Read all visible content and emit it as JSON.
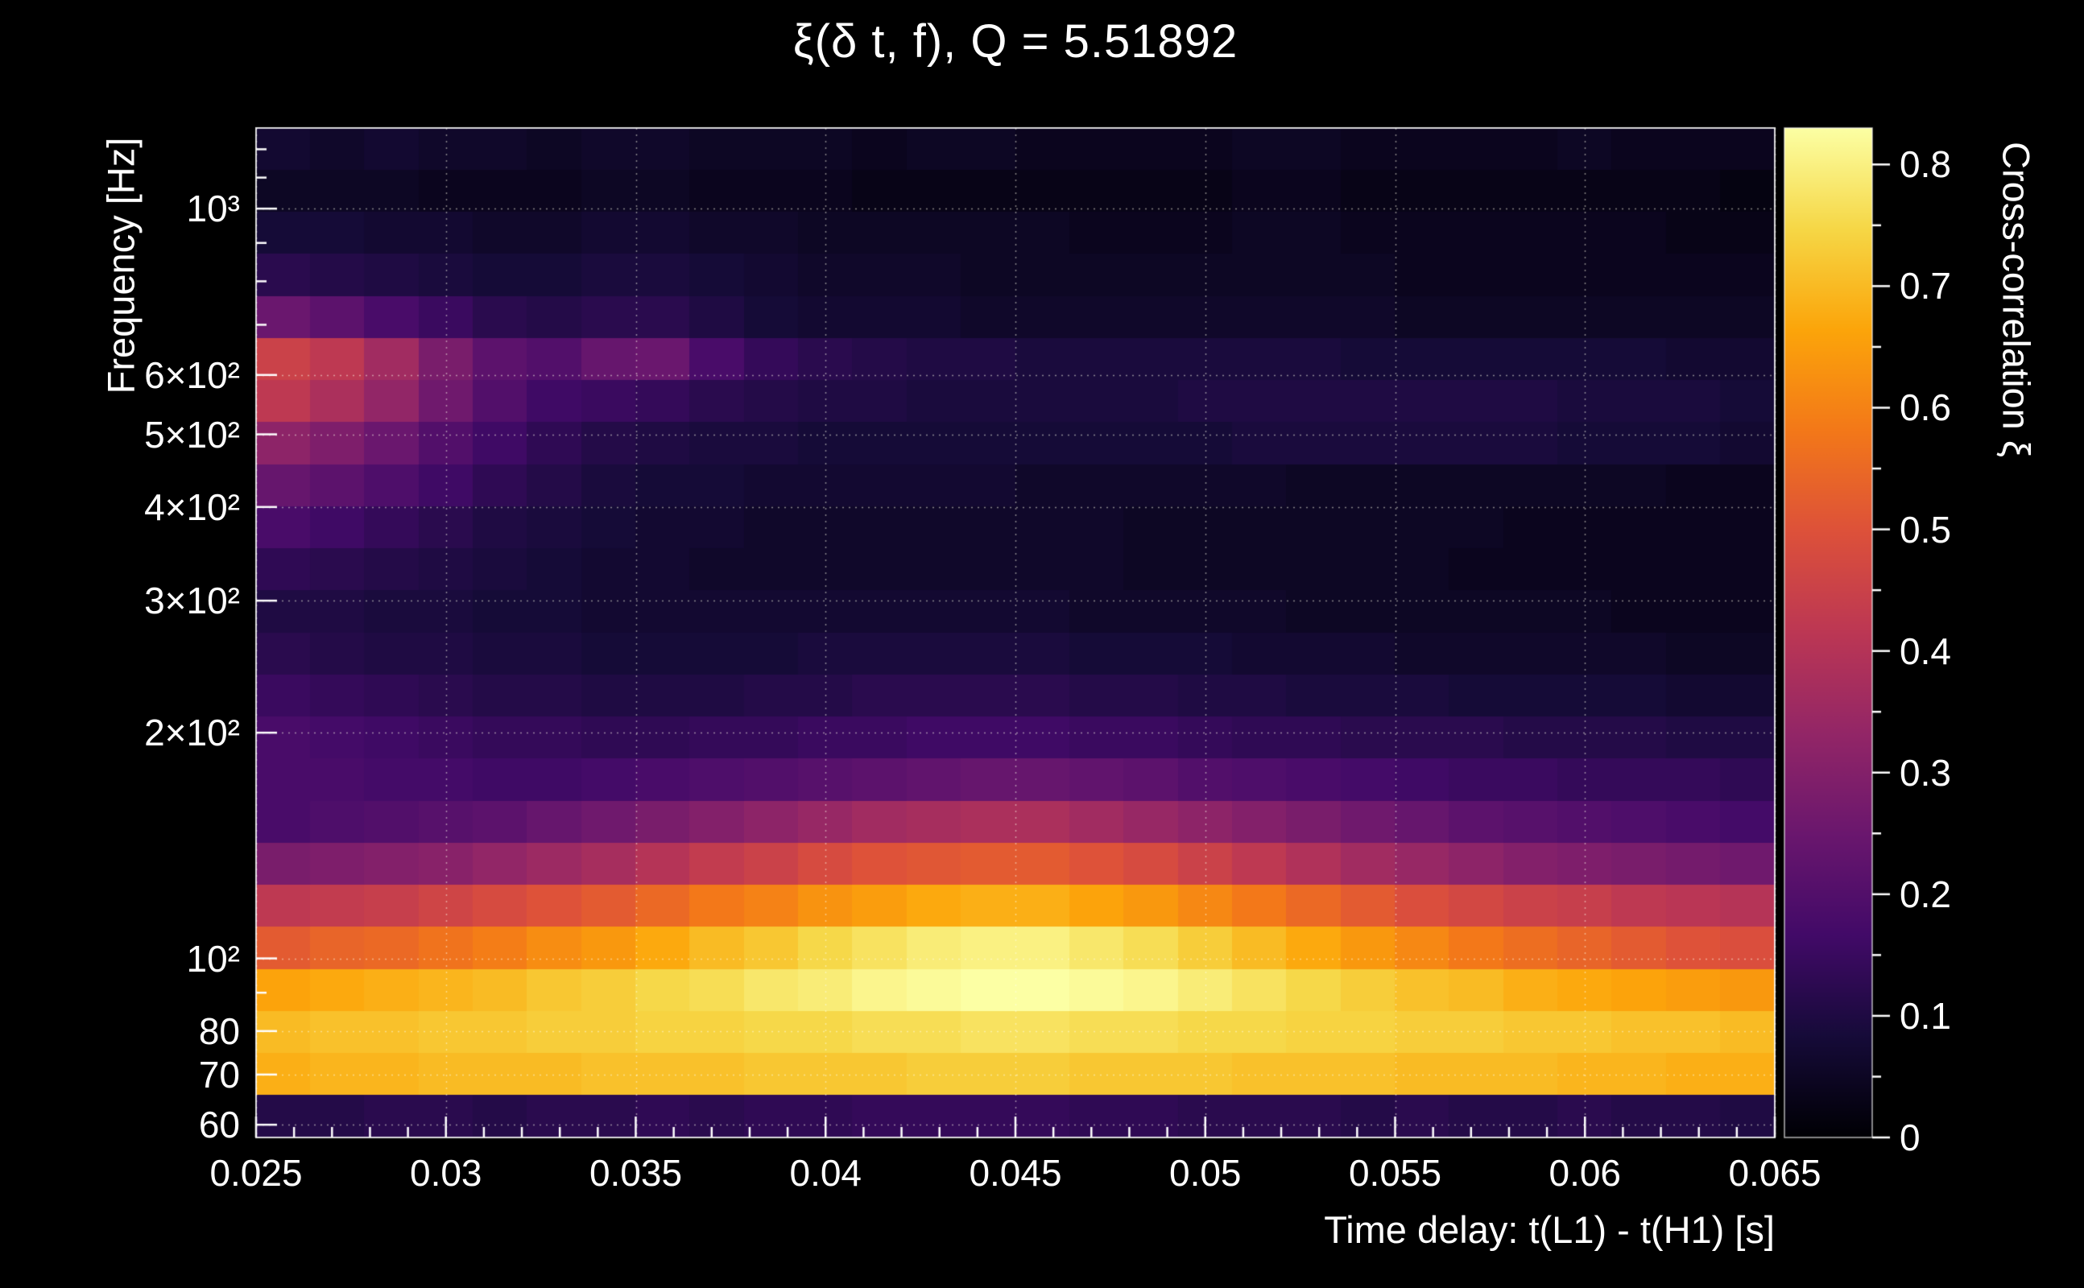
{
  "page": {
    "background_color": "#000000",
    "text_color": "#ffffff"
  },
  "chart_data": {
    "type": "heatmap",
    "title": "ξ(δ t, f), Q = 5.51892",
    "q_value": 5.51892,
    "xlabel": "Time delay: t(L1) - t(H1) [s]",
    "ylabel": "Frequency [Hz]",
    "zlabel": "Cross-correlation ξ",
    "x_min": 0.025,
    "x_max": 0.065,
    "y_min": 57.7,
    "y_max": 1281,
    "y_scale": "log",
    "z_min": 0,
    "z_max": 0.83,
    "x_ticks": [
      {
        "value": 0.025,
        "label": "0.025"
      },
      {
        "value": 0.03,
        "label": "0.03"
      },
      {
        "value": 0.035,
        "label": "0.035"
      },
      {
        "value": 0.04,
        "label": "0.04"
      },
      {
        "value": 0.045,
        "label": "0.045"
      },
      {
        "value": 0.05,
        "label": "0.05"
      },
      {
        "value": 0.055,
        "label": "0.055"
      },
      {
        "value": 0.06,
        "label": "0.06"
      },
      {
        "value": 0.065,
        "label": "0.065"
      }
    ],
    "y_ticks_major": [
      {
        "value": 1000,
        "label": "10³"
      },
      {
        "value": 600,
        "label": "6×10²"
      },
      {
        "value": 500,
        "label": "5×10²"
      },
      {
        "value": 400,
        "label": "4×10²"
      },
      {
        "value": 300,
        "label": "3×10²"
      },
      {
        "value": 200,
        "label": "2×10²"
      },
      {
        "value": 100,
        "label": "10²"
      },
      {
        "value": 80,
        "label": "80"
      },
      {
        "value": 70,
        "label": "70"
      },
      {
        "value": 60,
        "label": "60"
      }
    ],
    "y_ticks_minor": [
      90,
      700,
      800,
      900,
      1100,
      1200
    ],
    "z_ticks": [
      {
        "value": 0,
        "label": "0"
      },
      {
        "value": 0.1,
        "label": "0.1"
      },
      {
        "value": 0.2,
        "label": "0.2"
      },
      {
        "value": 0.3,
        "label": "0.3"
      },
      {
        "value": 0.4,
        "label": "0.4"
      },
      {
        "value": 0.5,
        "label": "0.5"
      },
      {
        "value": 0.6,
        "label": "0.6"
      },
      {
        "value": 0.7,
        "label": "0.7"
      },
      {
        "value": 0.8,
        "label": "0.8"
      }
    ],
    "grid": {
      "show": true,
      "color": "rgba(255,255,235,0.5)",
      "style": "dotted"
    },
    "colormap": {
      "name": "inferno",
      "stops": [
        [
          0.0,
          0,
          0,
          4
        ],
        [
          0.1,
          22,
          11,
          57
        ],
        [
          0.2,
          66,
          10,
          104
        ],
        [
          0.3,
          106,
          23,
          110
        ],
        [
          0.4,
          147,
          38,
          103
        ],
        [
          0.5,
          188,
          55,
          84
        ],
        [
          0.6,
          221,
          81,
          58
        ],
        [
          0.7,
          243,
          120,
          25
        ],
        [
          0.8,
          252,
          165,
          10
        ],
        [
          0.9,
          246,
          215,
          70
        ],
        [
          1.0,
          252,
          255,
          164
        ]
      ]
    },
    "n_time_bins": 28,
    "n_freq_bins": 24,
    "values_row_order": "top_to_bottom_high_freq_first",
    "values": [
      [
        0.07,
        0.06,
        0.07,
        0.06,
        0.06,
        0.05,
        0.06,
        0.06,
        0.05,
        0.05,
        0.05,
        0.04,
        0.05,
        0.05,
        0.04,
        0.04,
        0.04,
        0.04,
        0.05,
        0.05,
        0.04,
        0.04,
        0.04,
        0.04,
        0.05,
        0.04,
        0.04,
        0.04
      ],
      [
        0.05,
        0.05,
        0.05,
        0.04,
        0.04,
        0.04,
        0.05,
        0.05,
        0.04,
        0.04,
        0.04,
        0.03,
        0.03,
        0.03,
        0.03,
        0.03,
        0.03,
        0.03,
        0.04,
        0.04,
        0.03,
        0.03,
        0.03,
        0.03,
        0.03,
        0.03,
        0.03,
        0.02
      ],
      [
        0.08,
        0.08,
        0.07,
        0.07,
        0.06,
        0.06,
        0.07,
        0.07,
        0.06,
        0.06,
        0.05,
        0.05,
        0.05,
        0.05,
        0.05,
        0.04,
        0.04,
        0.04,
        0.05,
        0.05,
        0.04,
        0.04,
        0.04,
        0.04,
        0.04,
        0.04,
        0.03,
        0.03
      ],
      [
        0.12,
        0.11,
        0.1,
        0.09,
        0.08,
        0.08,
        0.09,
        0.09,
        0.08,
        0.07,
        0.06,
        0.06,
        0.06,
        0.05,
        0.05,
        0.05,
        0.05,
        0.05,
        0.05,
        0.05,
        0.05,
        0.04,
        0.04,
        0.04,
        0.04,
        0.04,
        0.04,
        0.04
      ],
      [
        0.25,
        0.22,
        0.18,
        0.15,
        0.12,
        0.11,
        0.12,
        0.12,
        0.1,
        0.08,
        0.07,
        0.07,
        0.07,
        0.06,
        0.06,
        0.06,
        0.06,
        0.06,
        0.06,
        0.06,
        0.06,
        0.05,
        0.05,
        0.05,
        0.05,
        0.05,
        0.05,
        0.05
      ],
      [
        0.45,
        0.42,
        0.36,
        0.28,
        0.22,
        0.2,
        0.24,
        0.25,
        0.18,
        0.14,
        0.12,
        0.11,
        0.1,
        0.1,
        0.09,
        0.09,
        0.09,
        0.09,
        0.09,
        0.09,
        0.08,
        0.08,
        0.08,
        0.08,
        0.08,
        0.08,
        0.07,
        0.07
      ],
      [
        0.42,
        0.38,
        0.33,
        0.26,
        0.2,
        0.16,
        0.15,
        0.14,
        0.12,
        0.11,
        0.1,
        0.1,
        0.09,
        0.09,
        0.09,
        0.09,
        0.09,
        0.1,
        0.1,
        0.1,
        0.1,
        0.1,
        0.1,
        0.1,
        0.09,
        0.09,
        0.09,
        0.08
      ],
      [
        0.32,
        0.29,
        0.25,
        0.2,
        0.16,
        0.13,
        0.11,
        0.1,
        0.09,
        0.09,
        0.08,
        0.08,
        0.08,
        0.08,
        0.08,
        0.08,
        0.08,
        0.08,
        0.09,
        0.09,
        0.09,
        0.09,
        0.09,
        0.09,
        0.08,
        0.08,
        0.08,
        0.07
      ],
      [
        0.24,
        0.22,
        0.19,
        0.16,
        0.13,
        0.11,
        0.09,
        0.08,
        0.08,
        0.07,
        0.07,
        0.07,
        0.07,
        0.07,
        0.06,
        0.06,
        0.06,
        0.06,
        0.06,
        0.05,
        0.05,
        0.05,
        0.05,
        0.05,
        0.05,
        0.05,
        0.04,
        0.04
      ],
      [
        0.18,
        0.16,
        0.14,
        0.12,
        0.1,
        0.09,
        0.08,
        0.07,
        0.07,
        0.06,
        0.06,
        0.06,
        0.06,
        0.06,
        0.06,
        0.06,
        0.05,
        0.05,
        0.05,
        0.05,
        0.05,
        0.05,
        0.05,
        0.04,
        0.04,
        0.04,
        0.04,
        0.04
      ],
      [
        0.13,
        0.12,
        0.11,
        0.1,
        0.09,
        0.08,
        0.07,
        0.07,
        0.06,
        0.06,
        0.06,
        0.06,
        0.06,
        0.06,
        0.06,
        0.06,
        0.05,
        0.05,
        0.05,
        0.05,
        0.05,
        0.05,
        0.04,
        0.04,
        0.04,
        0.04,
        0.04,
        0.04
      ],
      [
        0.1,
        0.1,
        0.09,
        0.09,
        0.08,
        0.08,
        0.07,
        0.07,
        0.07,
        0.07,
        0.07,
        0.07,
        0.07,
        0.07,
        0.07,
        0.06,
        0.06,
        0.06,
        0.06,
        0.05,
        0.05,
        0.05,
        0.05,
        0.05,
        0.05,
        0.04,
        0.04,
        0.04
      ],
      [
        0.12,
        0.11,
        0.1,
        0.1,
        0.09,
        0.09,
        0.08,
        0.08,
        0.08,
        0.08,
        0.09,
        0.09,
        0.09,
        0.09,
        0.09,
        0.08,
        0.08,
        0.08,
        0.07,
        0.07,
        0.07,
        0.06,
        0.06,
        0.06,
        0.06,
        0.06,
        0.05,
        0.05
      ],
      [
        0.15,
        0.14,
        0.13,
        0.12,
        0.11,
        0.11,
        0.1,
        0.1,
        0.1,
        0.11,
        0.11,
        0.12,
        0.12,
        0.12,
        0.12,
        0.11,
        0.11,
        0.1,
        0.1,
        0.09,
        0.09,
        0.09,
        0.08,
        0.08,
        0.08,
        0.08,
        0.07,
        0.07
      ],
      [
        0.18,
        0.17,
        0.16,
        0.15,
        0.14,
        0.14,
        0.13,
        0.13,
        0.14,
        0.14,
        0.15,
        0.15,
        0.16,
        0.16,
        0.16,
        0.15,
        0.15,
        0.14,
        0.13,
        0.13,
        0.12,
        0.12,
        0.12,
        0.11,
        0.11,
        0.11,
        0.1,
        0.1
      ],
      [
        0.18,
        0.18,
        0.17,
        0.17,
        0.16,
        0.16,
        0.17,
        0.18,
        0.19,
        0.2,
        0.21,
        0.22,
        0.23,
        0.24,
        0.24,
        0.23,
        0.22,
        0.2,
        0.19,
        0.18,
        0.17,
        0.16,
        0.15,
        0.15,
        0.14,
        0.14,
        0.14,
        0.13
      ],
      [
        0.18,
        0.19,
        0.2,
        0.21,
        0.22,
        0.24,
        0.26,
        0.28,
        0.3,
        0.32,
        0.34,
        0.36,
        0.37,
        0.38,
        0.38,
        0.36,
        0.34,
        0.32,
        0.3,
        0.28,
        0.26,
        0.24,
        0.22,
        0.21,
        0.2,
        0.19,
        0.18,
        0.17
      ],
      [
        0.28,
        0.29,
        0.3,
        0.31,
        0.33,
        0.35,
        0.37,
        0.4,
        0.43,
        0.45,
        0.48,
        0.5,
        0.51,
        0.52,
        0.52,
        0.5,
        0.48,
        0.45,
        0.42,
        0.39,
        0.36,
        0.34,
        0.32,
        0.3,
        0.29,
        0.28,
        0.27,
        0.26
      ],
      [
        0.42,
        0.43,
        0.44,
        0.46,
        0.48,
        0.5,
        0.52,
        0.55,
        0.58,
        0.6,
        0.63,
        0.65,
        0.67,
        0.68,
        0.68,
        0.66,
        0.64,
        0.61,
        0.58,
        0.55,
        0.52,
        0.49,
        0.47,
        0.45,
        0.44,
        0.42,
        0.41,
        0.4
      ],
      [
        0.52,
        0.54,
        0.55,
        0.57,
        0.59,
        0.62,
        0.64,
        0.67,
        0.7,
        0.72,
        0.75,
        0.77,
        0.79,
        0.8,
        0.8,
        0.78,
        0.76,
        0.73,
        0.7,
        0.67,
        0.64,
        0.61,
        0.58,
        0.56,
        0.54,
        0.52,
        0.5,
        0.49
      ],
      [
        0.66,
        0.67,
        0.68,
        0.69,
        0.7,
        0.72,
        0.73,
        0.75,
        0.76,
        0.78,
        0.79,
        0.81,
        0.82,
        0.83,
        0.83,
        0.82,
        0.81,
        0.79,
        0.77,
        0.75,
        0.73,
        0.71,
        0.7,
        0.68,
        0.67,
        0.66,
        0.65,
        0.64
      ],
      [
        0.7,
        0.71,
        0.71,
        0.72,
        0.72,
        0.73,
        0.73,
        0.74,
        0.74,
        0.75,
        0.75,
        0.76,
        0.76,
        0.77,
        0.77,
        0.76,
        0.76,
        0.75,
        0.75,
        0.74,
        0.74,
        0.73,
        0.73,
        0.72,
        0.72,
        0.71,
        0.71,
        0.7
      ],
      [
        0.68,
        0.69,
        0.69,
        0.7,
        0.7,
        0.7,
        0.71,
        0.71,
        0.71,
        0.72,
        0.72,
        0.72,
        0.73,
        0.73,
        0.73,
        0.72,
        0.72,
        0.72,
        0.71,
        0.71,
        0.71,
        0.7,
        0.7,
        0.7,
        0.69,
        0.69,
        0.68,
        0.68
      ],
      [
        0.11,
        0.11,
        0.12,
        0.12,
        0.11,
        0.12,
        0.12,
        0.13,
        0.12,
        0.13,
        0.13,
        0.14,
        0.14,
        0.14,
        0.14,
        0.13,
        0.13,
        0.12,
        0.12,
        0.12,
        0.11,
        0.12,
        0.11,
        0.11,
        0.12,
        0.11,
        0.11,
        0.1
      ]
    ]
  }
}
